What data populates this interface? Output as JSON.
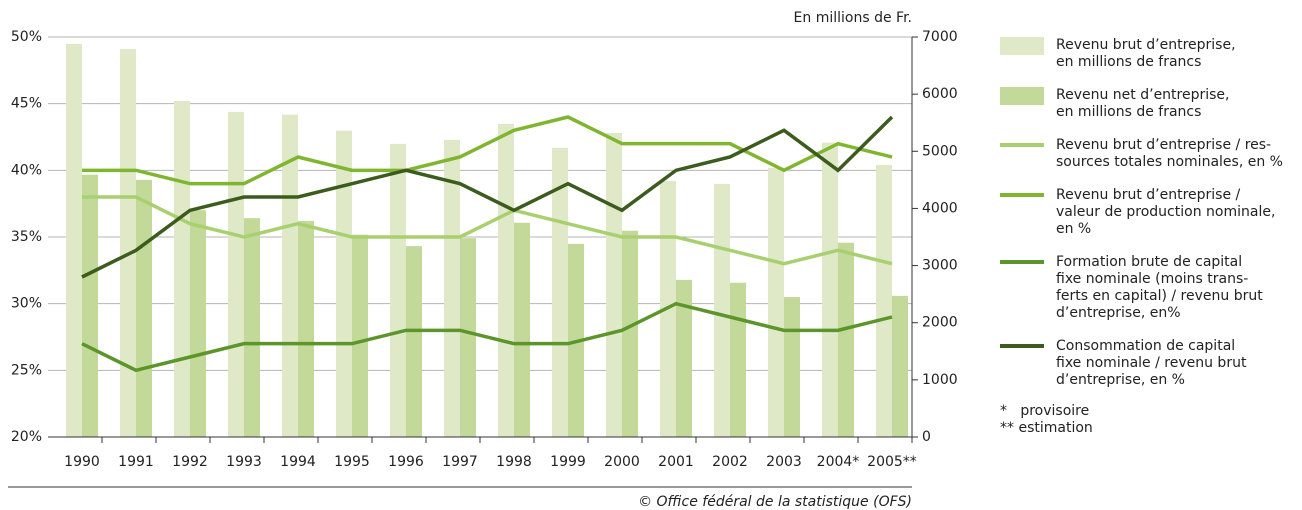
{
  "chart_data": {
    "type": "combo",
    "categories": [
      "1990",
      "1991",
      "1992",
      "1993",
      "1994",
      "1995",
      "1996",
      "1997",
      "1998",
      "1999",
      "2000",
      "2001",
      "2002",
      "2003",
      "2004*",
      "2005**"
    ],
    "y2_label": "En millions de Fr.",
    "ylim": [
      20,
      50
    ],
    "yticks": [
      {
        "value": 20,
        "label": "20%"
      },
      {
        "value": 25,
        "label": "25%"
      },
      {
        "value": 30,
        "label": "30%"
      },
      {
        "value": 35,
        "label": "35%"
      },
      {
        "value": 40,
        "label": "40%"
      },
      {
        "value": 45,
        "label": "45%"
      },
      {
        "value": 50,
        "label": "50%"
      }
    ],
    "y2lim": [
      0,
      7000
    ],
    "y2ticks": [
      0,
      1000,
      2000,
      3000,
      4000,
      5000,
      6000,
      7000
    ],
    "grid": true,
    "legend": "right",
    "series": [
      {
        "name": "Revenu brut d’entreprise,\nen millions de francs",
        "type": "bar",
        "axis": "y2",
        "color": "#dfe9c8",
        "values": [
          6880,
          6790,
          5880,
          5690,
          5640,
          5360,
          5130,
          5200,
          5480,
          5060,
          5320,
          4480,
          4430,
          4710,
          5150,
          4760
        ]
      },
      {
        "name": "Revenu net d’entreprise,\nen millions de francs",
        "type": "bar",
        "axis": "y2",
        "color": "#c3d99a",
        "values": [
          4590,
          4500,
          3970,
          3830,
          3780,
          3540,
          3340,
          3480,
          3750,
          3380,
          3610,
          2750,
          2700,
          2450,
          3400,
          2470
        ]
      },
      {
        "name": "Revenu brut d’entreprise / res-\nsources totales nominales, en %",
        "type": "line",
        "color": "#a9d06f",
        "values": [
          38,
          38,
          36,
          35,
          36,
          35,
          35,
          35,
          37,
          36,
          35,
          35,
          34,
          33,
          34,
          33
        ]
      },
      {
        "name": "Revenu brut d’entreprise /\nvaleur de production nominale,\nen %",
        "type": "line",
        "color": "#7fb52f",
        "values": [
          40,
          40,
          39,
          39,
          41,
          40,
          40,
          41,
          43,
          44,
          42,
          42,
          42,
          40,
          42,
          41
        ]
      },
      {
        "name": "Formation brute de capital\nfixe nominale (moins trans-\nferts en capital) / revenu brut\nd’entreprise, en%",
        "type": "line",
        "color": "#5c962a",
        "values": [
          27,
          25,
          26,
          27,
          27,
          27,
          28,
          28,
          27,
          27,
          28,
          30,
          29,
          28,
          28,
          29
        ]
      },
      {
        "name": "Consommation de capital\nfixe nominale / revenu brut\nd’entreprise, en %",
        "type": "line",
        "color": "#3c5c1e",
        "values": [
          32,
          34,
          37,
          38,
          38,
          39,
          40,
          39,
          37,
          39,
          37,
          40,
          41,
          43,
          40,
          44
        ]
      }
    ],
    "notes": [
      "*   provisoire",
      "** estimation"
    ],
    "source": "© Office fédéral de la statistique (OFS)"
  }
}
